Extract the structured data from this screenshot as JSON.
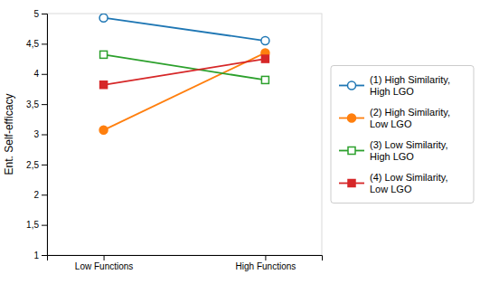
{
  "chart_data": {
    "type": "line",
    "categories": [
      "Low Functions",
      "High Functions"
    ],
    "series": [
      {
        "name": "(1) High Similarity,\nHigh LGO",
        "marker": "circle-open",
        "line_style": "solid",
        "values": [
          4.93,
          4.55
        ]
      },
      {
        "name": "(2) High Similarity,\nLow LGO",
        "marker": "circle",
        "line_style": "solid",
        "values": [
          3.07,
          4.35
        ]
      },
      {
        "name": "(3) Low Similarity,\nHigh LGO",
        "marker": "square-open",
        "line_style": "solid",
        "values": [
          4.32,
          3.9
        ]
      },
      {
        "name": "(4) Low Similarity,\nLow LGO",
        "marker": "square",
        "line_style": "solid",
        "values": [
          3.82,
          4.25
        ]
      }
    ],
    "ylabel": "Ent. Self-efficacy",
    "ylim": [
      1,
      5
    ],
    "yticks": [
      1,
      {
        "value": 1.5,
        "label": "1,5"
      },
      2,
      {
        "value": 2.5,
        "label": "2,5"
      },
      3,
      {
        "value": 3.5,
        "label": "3,5"
      },
      4,
      {
        "value": 4.5,
        "label": "4,5"
      },
      5
    ],
    "legend": "right"
  }
}
